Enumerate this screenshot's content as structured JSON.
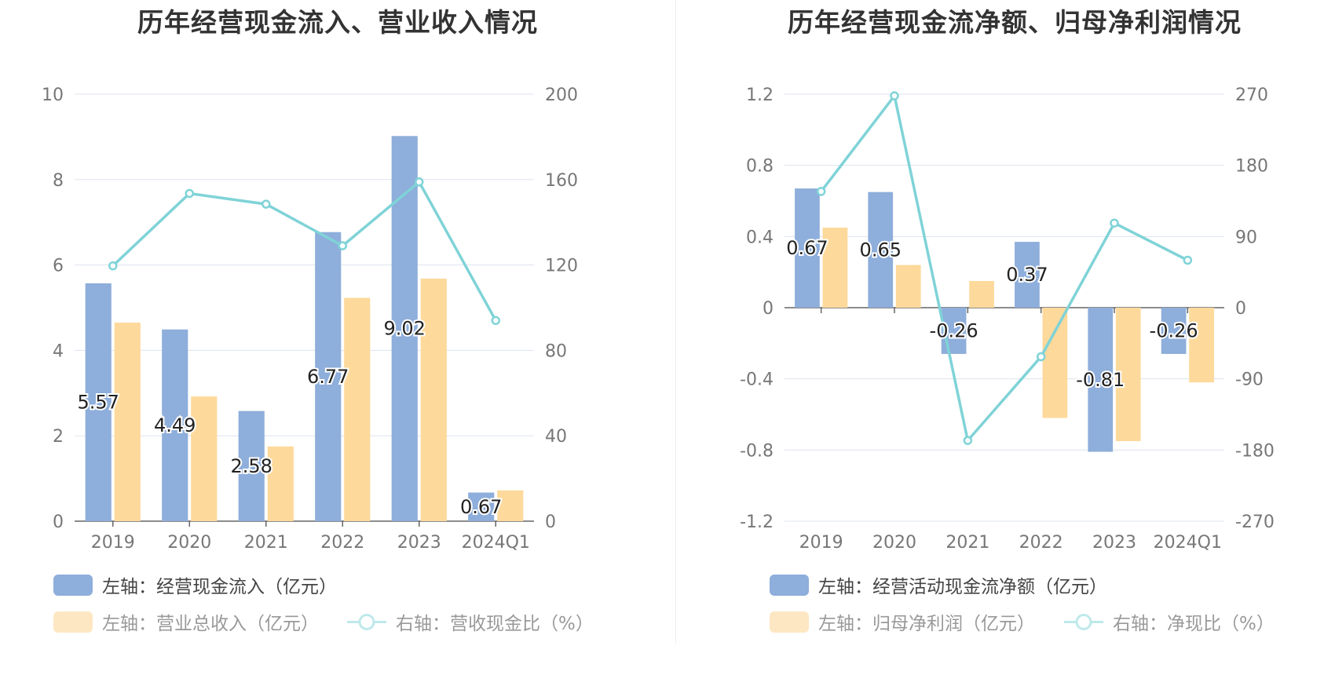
{
  "chart_data": [
    {
      "type": "bar",
      "title": "历年经营现金流入、营业收入情况",
      "categories": [
        "2019",
        "2020",
        "2021",
        "2022",
        "2023",
        "2024Q1"
      ],
      "y_left": {
        "ticks": [
          "0",
          "2",
          "4",
          "6",
          "8",
          "10"
        ],
        "ylim": [
          0,
          10
        ]
      },
      "y_right": {
        "ticks": [
          "0",
          "40",
          "80",
          "120",
          "160",
          "200"
        ],
        "ylim": [
          0,
          200
        ]
      },
      "series": [
        {
          "name": "左轴：经营现金流入（亿元）",
          "axis": "left",
          "kind": "bar",
          "color": "#8eaedb",
          "values": [
            5.57,
            4.49,
            2.58,
            6.77,
            9.02,
            0.67
          ],
          "labels": [
            "5.57",
            "4.49",
            "2.58",
            "6.77",
            "9.02",
            "0.67"
          ]
        },
        {
          "name": "左轴：营业总收入（亿元）",
          "axis": "left",
          "kind": "bar",
          "color": "#fdd99b",
          "values": [
            4.65,
            2.92,
            1.75,
            5.23,
            5.68,
            0.72
          ]
        },
        {
          "name": "右轴：营收现金比（%）",
          "axis": "right",
          "kind": "line",
          "color": "#7fd3d7",
          "values": [
            119.6,
            153.5,
            148.5,
            129.0,
            158.9,
            94.0
          ]
        }
      ],
      "grid": true,
      "legend_position": "bottom"
    },
    {
      "type": "bar",
      "title": "历年经营现金流净额、归母净利润情况",
      "categories": [
        "2019",
        "2020",
        "2021",
        "2022",
        "2023",
        "2024Q1"
      ],
      "y_left": {
        "ticks": [
          "-1.2",
          "-0.8",
          "-0.4",
          "0",
          "0.4",
          "0.8",
          "1.2"
        ],
        "ylim": [
          -1.2,
          1.2
        ]
      },
      "y_right": {
        "ticks": [
          "-270",
          "-180",
          "-90",
          "0",
          "90",
          "180",
          "270"
        ],
        "ylim": [
          -270,
          270
        ]
      },
      "series": [
        {
          "name": "左轴：经营活动现金流净额（亿元）",
          "axis": "left",
          "kind": "bar",
          "color": "#8eaedb",
          "values": [
            0.67,
            0.65,
            -0.26,
            0.37,
            -0.81,
            -0.26
          ],
          "labels": [
            "0.67",
            "0.65",
            "-0.26",
            "0.37",
            "-0.81",
            "-0.26"
          ]
        },
        {
          "name": "左轴：归母净利润（亿元）",
          "axis": "left",
          "kind": "bar",
          "color": "#fdd99b",
          "values": [
            0.45,
            0.24,
            0.15,
            -0.62,
            -0.75,
            -0.42
          ]
        },
        {
          "name": "右轴：净现比（%）",
          "axis": "right",
          "kind": "line",
          "color": "#7fd3d7",
          "values": [
            147,
            268,
            -168,
            -62,
            107,
            60
          ]
        }
      ],
      "grid": true,
      "legend_position": "bottom"
    }
  ]
}
